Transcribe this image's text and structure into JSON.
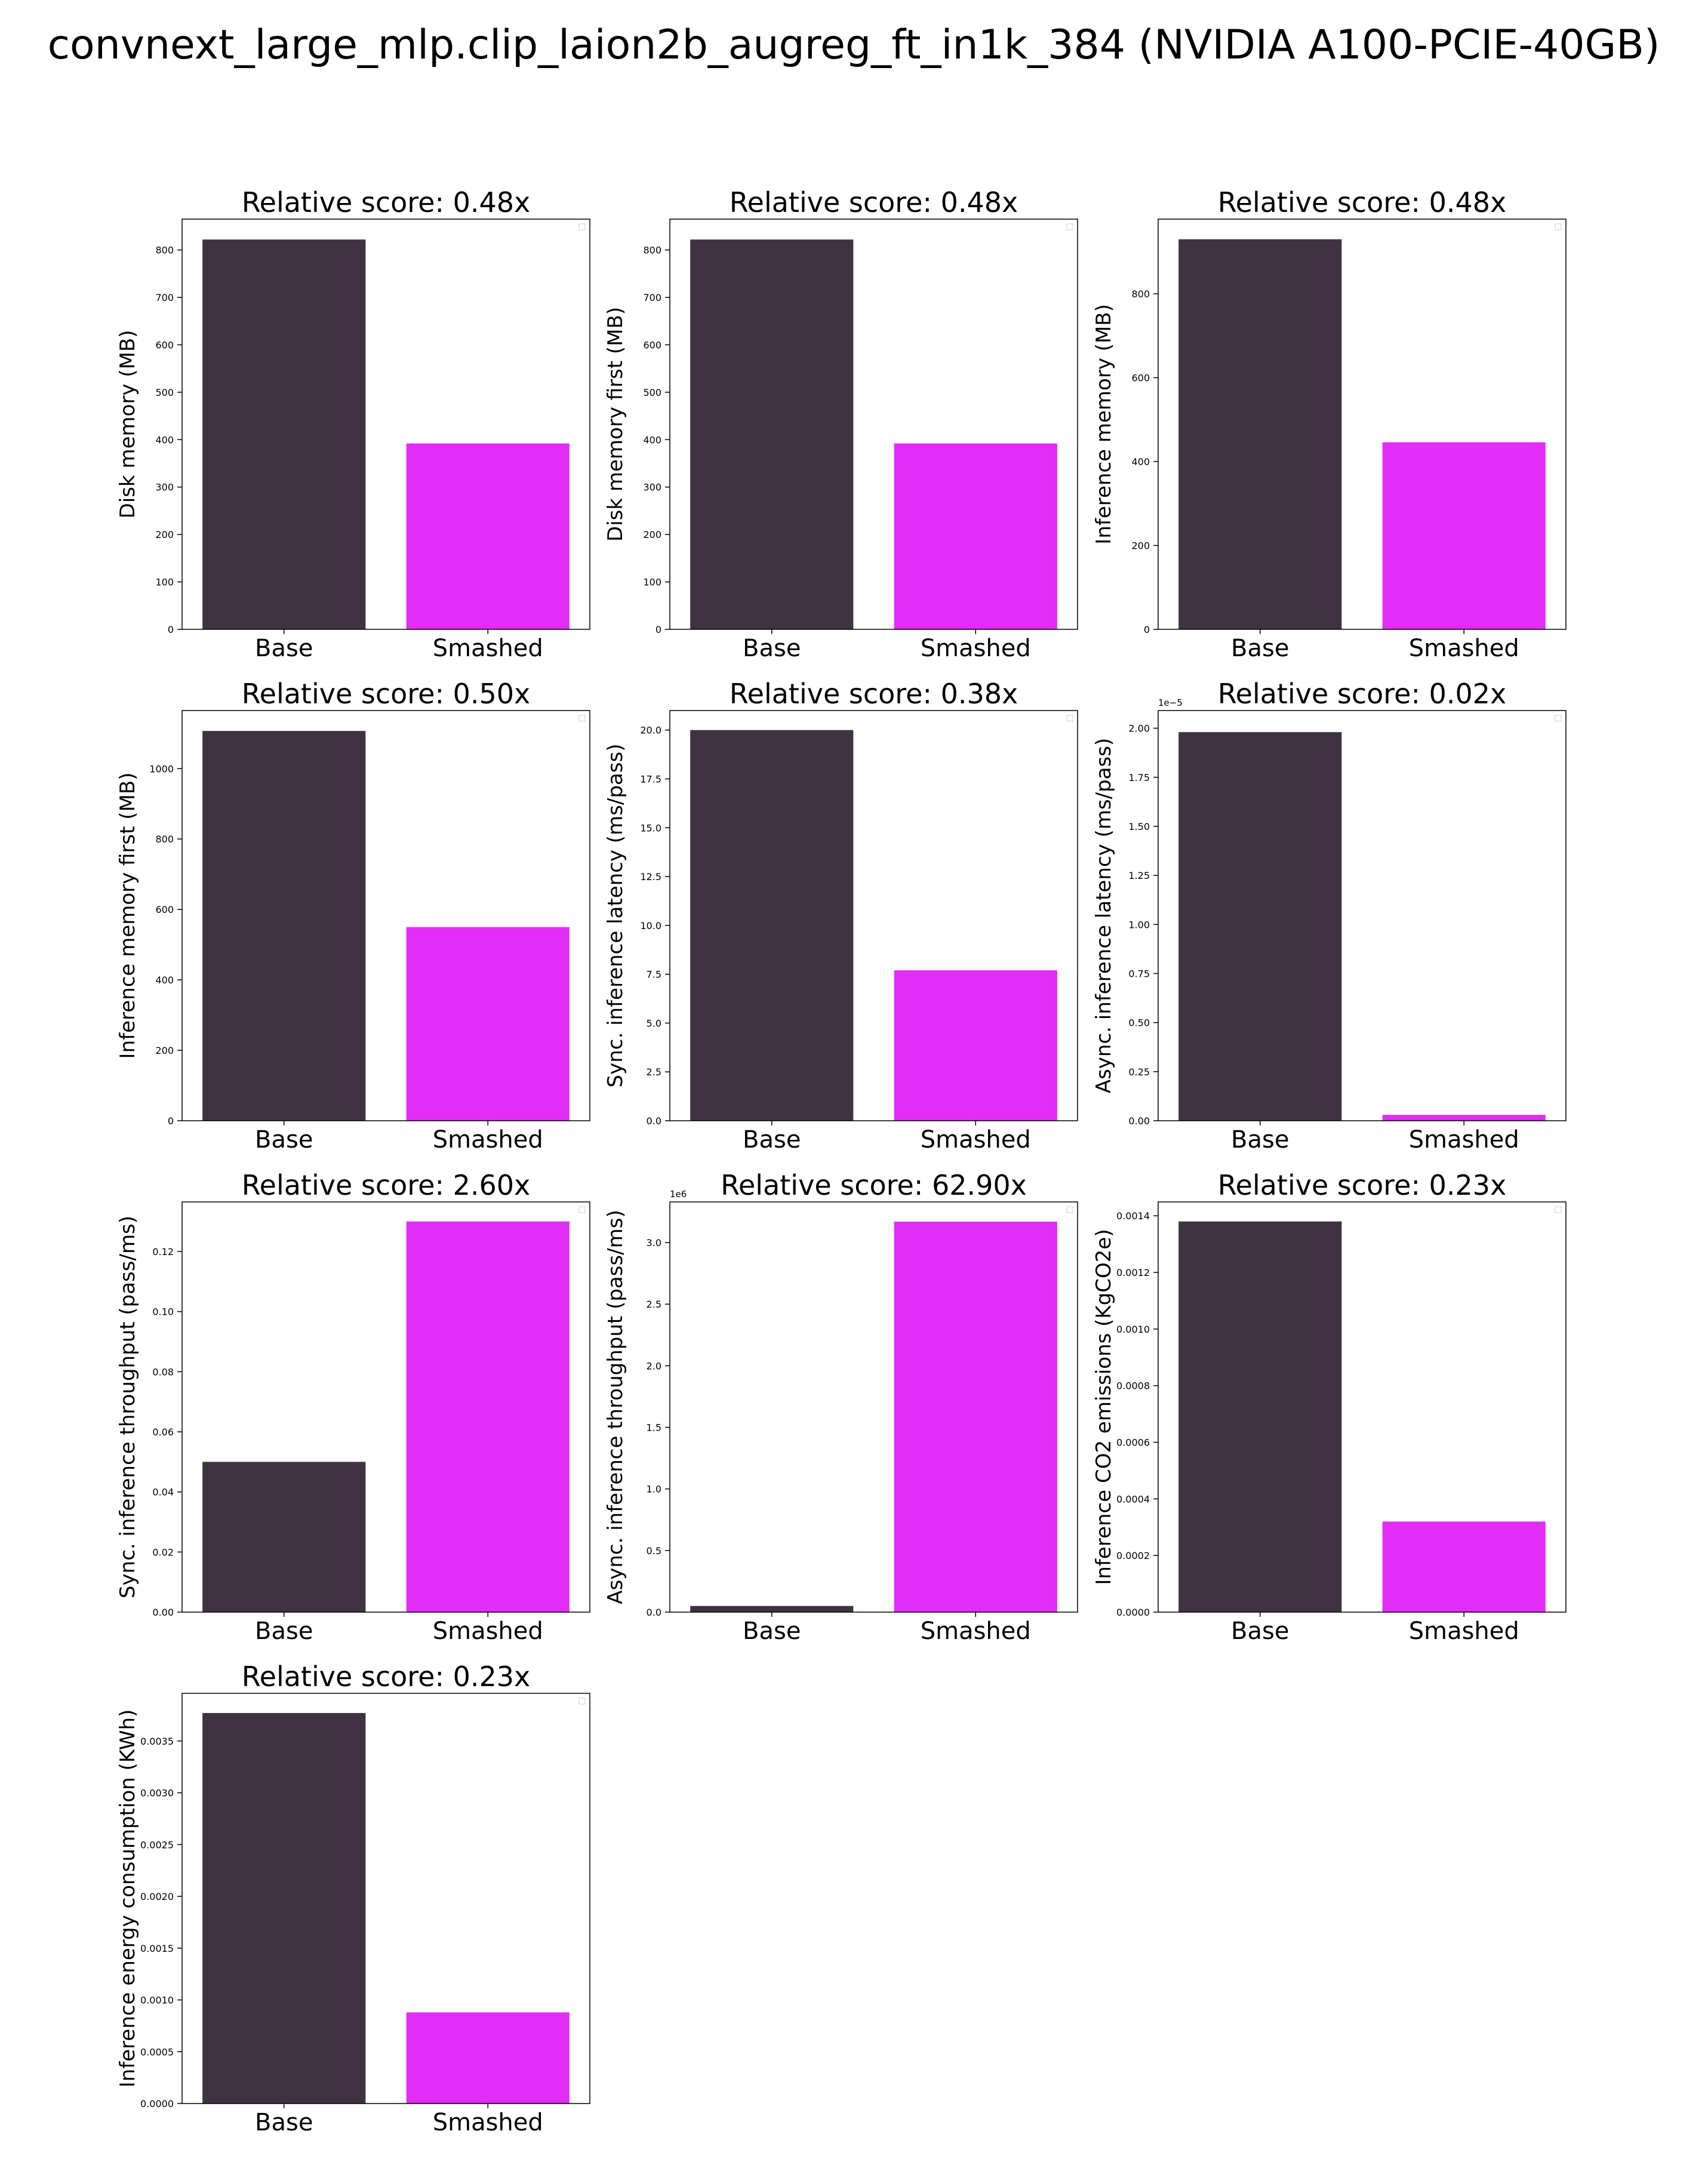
{
  "figure_title": "convnext_large_mlp.clip_laion2b_augreg_ft_in1k_384 (NVIDIA A100-PCIE-40GB)",
  "colors": {
    "base": "#403243",
    "smashed": "#E12DF7",
    "axis": "#000000"
  },
  "chart_data": [
    {
      "type": "bar",
      "title": "Relative score: 0.48x",
      "categories": [
        "Base",
        "Smashed"
      ],
      "values": [
        822,
        392
      ],
      "ylabel": "Disk memory (MB)",
      "ylim": [
        0,
        865
      ],
      "yticks": [
        0,
        100,
        200,
        300,
        400,
        500,
        600,
        700,
        800
      ],
      "ytick_labels": [
        "0",
        "100",
        "200",
        "300",
        "400",
        "500",
        "600",
        "700",
        "800"
      ],
      "exponent": ""
    },
    {
      "type": "bar",
      "title": "Relative score: 0.48x",
      "categories": [
        "Base",
        "Smashed"
      ],
      "values": [
        822,
        392
      ],
      "ylabel": "Disk memory first (MB)",
      "ylim": [
        0,
        865
      ],
      "yticks": [
        0,
        100,
        200,
        300,
        400,
        500,
        600,
        700,
        800
      ],
      "ytick_labels": [
        "0",
        "100",
        "200",
        "300",
        "400",
        "500",
        "600",
        "700",
        "800"
      ],
      "exponent": ""
    },
    {
      "type": "bar",
      "title": "Relative score: 0.48x",
      "categories": [
        "Base",
        "Smashed"
      ],
      "values": [
        930,
        446
      ],
      "ylabel": "Inference memory (MB)",
      "ylim": [
        0,
        978
      ],
      "yticks": [
        0,
        200,
        400,
        600,
        800
      ],
      "ytick_labels": [
        "0",
        "200",
        "400",
        "600",
        "800"
      ],
      "exponent": ""
    },
    {
      "type": "bar",
      "title": "Relative score: 0.50x",
      "categories": [
        "Base",
        "Smashed"
      ],
      "values": [
        1107,
        550
      ],
      "ylabel": "Inference memory first (MB)",
      "ylim": [
        0,
        1165
      ],
      "yticks": [
        0,
        200,
        400,
        600,
        800,
        1000
      ],
      "ytick_labels": [
        "0",
        "200",
        "400",
        "600",
        "800",
        "1000"
      ],
      "exponent": ""
    },
    {
      "type": "bar",
      "title": "Relative score: 0.38x",
      "categories": [
        "Base",
        "Smashed"
      ],
      "values": [
        20.0,
        7.7
      ],
      "ylabel": "Sync. inference latency (ms/pass)",
      "ylim": [
        0,
        21.0
      ],
      "yticks": [
        0,
        2.5,
        5,
        7.5,
        10,
        12.5,
        15,
        17.5,
        20
      ],
      "ytick_labels": [
        "0.0",
        "2.5",
        "5.0",
        "7.5",
        "10.0",
        "12.5",
        "15.0",
        "17.5",
        "20.0"
      ],
      "exponent": ""
    },
    {
      "type": "bar",
      "title": "Relative score: 0.02x",
      "categories": [
        "Base",
        "Smashed"
      ],
      "values": [
        1.98e-05,
        3e-07
      ],
      "ylabel": "Async. inference latency (ms/pass)",
      "ylim": [
        0,
        2.09e-05
      ],
      "yticks": [
        0,
        2.5e-06,
        5e-06,
        7.5e-06,
        1e-05,
        1.25e-05,
        1.5e-05,
        1.75e-05,
        2e-05
      ],
      "ytick_labels": [
        "0.00",
        "0.25",
        "0.50",
        "0.75",
        "1.00",
        "1.25",
        "1.50",
        "1.75",
        "2.00"
      ],
      "exponent": "1e−5"
    },
    {
      "type": "bar",
      "title": "Relative score: 2.60x",
      "categories": [
        "Base",
        "Smashed"
      ],
      "values": [
        0.05,
        0.13
      ],
      "ylabel": "Sync. inference throughput (pass/ms)",
      "ylim": [
        0,
        0.1365
      ],
      "yticks": [
        0,
        0.02,
        0.04,
        0.06,
        0.08,
        0.1,
        0.12
      ],
      "ytick_labels": [
        "0.00",
        "0.02",
        "0.04",
        "0.06",
        "0.08",
        "0.10",
        "0.12"
      ],
      "exponent": ""
    },
    {
      "type": "bar",
      "title": "Relative score: 62.90x",
      "categories": [
        "Base",
        "Smashed"
      ],
      "values": [
        50000.0,
        3170000.0
      ],
      "ylabel": "Async. inference throughput (pass/ms)",
      "ylim": [
        0,
        3330000.0
      ],
      "yticks": [
        0,
        500000.0,
        1000000.0,
        1500000.0,
        2000000.0,
        2500000.0,
        3000000.0
      ],
      "ytick_labels": [
        "0.0",
        "0.5",
        "1.0",
        "1.5",
        "2.0",
        "2.5",
        "3.0"
      ],
      "exponent": "1e6"
    },
    {
      "type": "bar",
      "title": "Relative score: 0.23x",
      "categories": [
        "Base",
        "Smashed"
      ],
      "values": [
        0.00138,
        0.00032
      ],
      "ylabel": "Inference CO2 emissions (KgCO2e)",
      "ylim": [
        0,
        0.001449
      ],
      "yticks": [
        0,
        0.0002,
        0.0004,
        0.0006,
        0.0008,
        0.001,
        0.0012,
        0.0014
      ],
      "ytick_labels": [
        "0.0000",
        "0.0002",
        "0.0004",
        "0.0006",
        "0.0008",
        "0.0010",
        "0.0012",
        "0.0014"
      ],
      "exponent": ""
    },
    {
      "type": "bar",
      "title": "Relative score: 0.23x",
      "categories": [
        "Base",
        "Smashed"
      ],
      "values": [
        0.00377,
        0.00088
      ],
      "ylabel": "Inference energy consumption (KWh)",
      "ylim": [
        0,
        0.00396
      ],
      "yticks": [
        0,
        0.0005,
        0.001,
        0.0015,
        0.002,
        0.0025,
        0.003,
        0.0035
      ],
      "ytick_labels": [
        "0.0000",
        "0.0005",
        "0.0010",
        "0.0015",
        "0.0020",
        "0.0025",
        "0.0030",
        "0.0035"
      ],
      "exponent": ""
    }
  ]
}
